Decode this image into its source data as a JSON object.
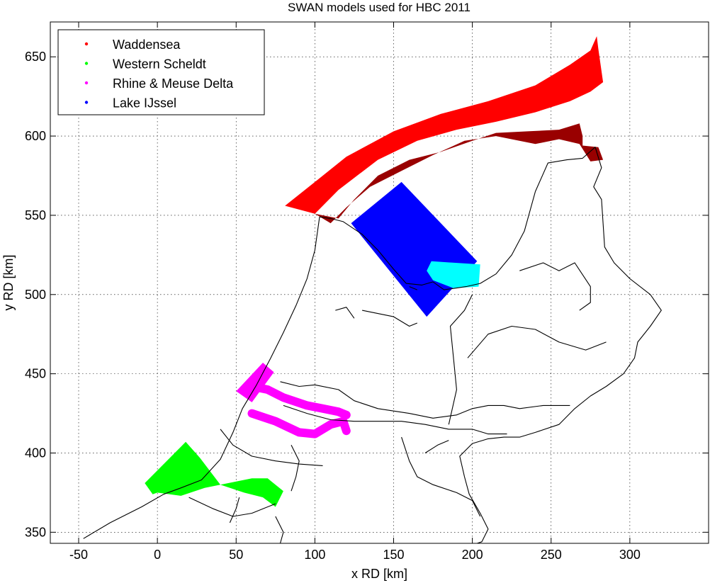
{
  "chart_data": {
    "type": "map",
    "title": "SWAN models used for HBC 2011",
    "xlabel": "x RD [km]",
    "ylabel": "y RD [km]",
    "xlim": [
      -68,
      350
    ],
    "ylim": [
      343,
      672
    ],
    "xticks": [
      -50,
      0,
      50,
      100,
      150,
      200,
      250,
      300
    ],
    "yticks": [
      350,
      400,
      450,
      500,
      550,
      600,
      650
    ],
    "grid": true,
    "legend_position": "top-left",
    "series": [
      {
        "name": "Waddensea",
        "color": "#ff0000",
        "dark_color": "#990000",
        "outer": [
          [
            81,
            556
          ],
          [
            100,
            571
          ],
          [
            120,
            587
          ],
          [
            150,
            603
          ],
          [
            180,
            614
          ],
          [
            210,
            622
          ],
          [
            240,
            632
          ],
          [
            262,
            645
          ],
          [
            275,
            654
          ],
          [
            279,
            663
          ],
          [
            280,
            655
          ],
          [
            283,
            634
          ],
          [
            275,
            628
          ],
          [
            262,
            622
          ],
          [
            240,
            615
          ],
          [
            215,
            609
          ],
          [
            190,
            604
          ],
          [
            165,
            597
          ],
          [
            140,
            585
          ],
          [
            115,
            566
          ],
          [
            100,
            551
          ]
        ],
        "inner": [
          [
            100,
            551
          ],
          [
            115,
            548
          ],
          [
            125,
            560
          ],
          [
            140,
            575
          ],
          [
            160,
            585
          ],
          [
            180,
            590
          ],
          [
            200,
            597
          ],
          [
            215,
            602
          ],
          [
            235,
            603
          ],
          [
            255,
            604
          ],
          [
            268,
            608
          ],
          [
            270,
            600
          ],
          [
            270,
            594
          ],
          [
            280,
            593
          ],
          [
            283,
            585
          ],
          [
            275,
            584
          ],
          [
            268,
            595
          ],
          [
            255,
            598
          ],
          [
            240,
            595
          ],
          [
            215,
            600
          ],
          [
            195,
            597
          ],
          [
            175,
            588
          ],
          [
            155,
            578
          ],
          [
            135,
            568
          ],
          [
            120,
            555
          ],
          [
            110,
            545
          ]
        ]
      },
      {
        "name": "Western Scheldt",
        "color": "#00ff00",
        "polygon": [
          [
            -8,
            381
          ],
          [
            18,
            407
          ],
          [
            27,
            397
          ],
          [
            40,
            380
          ],
          [
            55,
            375
          ],
          [
            67,
            372
          ],
          [
            75,
            366
          ],
          [
            80,
            376
          ],
          [
            70,
            384
          ],
          [
            60,
            384
          ],
          [
            45,
            381
          ],
          [
            30,
            378
          ],
          [
            15,
            373
          ],
          [
            0,
            375
          ],
          [
            -3,
            374
          ]
        ]
      },
      {
        "name": "Rhine & Meuse Delta",
        "color": "#ff00ff",
        "polygon": [
          [
            50,
            439
          ],
          [
            67,
            457
          ],
          [
            74,
            451
          ],
          [
            60,
            432
          ]
        ],
        "channels": [
          [
            [
              60,
              442
            ],
            [
              70,
              440
            ],
            [
              80,
              435
            ],
            [
              95,
              430
            ],
            [
              105,
              428
            ],
            [
              115,
              426
            ],
            [
              120,
              424
            ]
          ],
          [
            [
              60,
              425
            ],
            [
              75,
              420
            ],
            [
              90,
              413
            ],
            [
              100,
              412
            ],
            [
              110,
              418
            ],
            [
              118,
              420
            ],
            [
              120,
              414
            ]
          ]
        ]
      },
      {
        "name": "Lake IJssel",
        "color": "#0000ff",
        "polygon": [
          [
            123,
            545
          ],
          [
            155,
            571
          ],
          [
            203,
            521
          ],
          [
            171,
            486
          ]
        ],
        "cyan_color": "#00ffff",
        "cyan_polygon": [
          [
            171,
            515
          ],
          [
            174,
            521
          ],
          [
            205,
            519
          ],
          [
            204,
            505
          ],
          [
            188,
            504
          ],
          [
            175,
            509
          ]
        ]
      }
    ],
    "coastline": [
      [
        [
          -47,
          346
        ],
        [
          -30,
          356
        ],
        [
          -10,
          366
        ],
        [
          4,
          374
        ],
        [
          15,
          378
        ],
        [
          28,
          383
        ],
        [
          40,
          396
        ],
        [
          48,
          413
        ],
        [
          54,
          428
        ],
        [
          63,
          443
        ],
        [
          72,
          460
        ],
        [
          80,
          476
        ],
        [
          88,
          493
        ],
        [
          95,
          510
        ],
        [
          100,
          528
        ],
        [
          102,
          542
        ],
        [
          103,
          549
        ]
      ],
      [
        [
          103,
          549
        ],
        [
          110,
          548
        ],
        [
          118,
          546
        ],
        [
          130,
          538
        ],
        [
          140,
          528
        ],
        [
          150,
          516
        ],
        [
          158,
          507
        ],
        [
          168,
          506
        ],
        [
          175,
          508
        ],
        [
          182,
          503
        ],
        [
          196,
          505
        ],
        [
          205,
          507
        ],
        [
          215,
          513
        ],
        [
          225,
          525
        ],
        [
          233,
          540
        ],
        [
          240,
          565
        ],
        [
          248,
          583
        ],
        [
          260,
          585
        ],
        [
          270,
          586
        ],
        [
          278,
          593
        ],
        [
          282,
          580
        ],
        [
          277,
          568
        ],
        [
          282,
          560
        ],
        [
          284,
          530
        ],
        [
          290,
          520
        ],
        [
          300,
          510
        ],
        [
          313,
          500
        ],
        [
          320,
          490
        ],
        [
          313,
          480
        ],
        [
          305,
          470
        ],
        [
          303,
          460
        ],
        [
          296,
          450
        ],
        [
          285,
          442
        ],
        [
          275,
          436
        ],
        [
          265,
          428
        ],
        [
          255,
          418
        ],
        [
          240,
          413
        ],
        [
          230,
          410
        ],
        [
          220,
          410
        ],
        [
          210,
          409
        ],
        [
          200,
          406
        ],
        [
          192,
          398
        ],
        [
          195,
          385
        ],
        [
          198,
          374
        ],
        [
          205,
          362
        ],
        [
          210,
          352
        ],
        [
          206,
          344
        ],
        [
          203,
          343
        ]
      ],
      [
        [
          130,
          490
        ],
        [
          140,
          488
        ],
        [
          150,
          486
        ],
        [
          160,
          480
        ],
        [
          165,
          482
        ]
      ],
      [
        [
          113,
          490
        ],
        [
          120,
          492
        ],
        [
          125,
          485
        ]
      ],
      [
        [
          160,
          505
        ],
        [
          165,
          503
        ]
      ]
    ],
    "rivers": [
      [
        [
          78,
          445
        ],
        [
          90,
          442
        ],
        [
          100,
          443
        ],
        [
          115,
          440
        ],
        [
          125,
          433
        ],
        [
          140,
          428
        ],
        [
          160,
          425
        ],
        [
          175,
          422
        ],
        [
          190,
          424
        ],
        [
          200,
          428
        ],
        [
          210,
          430
        ],
        [
          220,
          430
        ],
        [
          230,
          428
        ],
        [
          245,
          430
        ],
        [
          262,
          430
        ]
      ],
      [
        [
          80,
          430
        ],
        [
          95,
          425
        ],
        [
          110,
          421
        ],
        [
          125,
          420
        ],
        [
          140,
          420
        ],
        [
          155,
          420
        ],
        [
          170,
          418
        ],
        [
          185,
          415
        ],
        [
          200,
          415
        ],
        [
          210,
          412
        ],
        [
          222,
          412
        ]
      ],
      [
        [
          185,
          418
        ],
        [
          190,
          440
        ],
        [
          188,
          460
        ],
        [
          186,
          480
        ],
        [
          195,
          490
        ],
        [
          200,
          500
        ]
      ],
      [
        [
          197,
          460
        ],
        [
          210,
          475
        ],
        [
          225,
          480
        ],
        [
          240,
          478
        ],
        [
          255,
          470
        ],
        [
          272,
          465
        ],
        [
          285,
          470
        ]
      ],
      [
        [
          155,
          410
        ],
        [
          160,
          395
        ],
        [
          165,
          385
        ],
        [
          175,
          380
        ],
        [
          190,
          375
        ],
        [
          200,
          370
        ],
        [
          205,
          360
        ]
      ],
      [
        [
          170,
          400
        ],
        [
          178,
          405
        ],
        [
          185,
          408
        ]
      ],
      [
        [
          40,
          415
        ],
        [
          48,
          405
        ],
        [
          60,
          398
        ],
        [
          75,
          395
        ],
        [
          90,
          393
        ],
        [
          105,
          392
        ]
      ],
      [
        [
          85,
          405
        ],
        [
          90,
          395
        ],
        [
          88,
          385
        ],
        [
          85,
          376
        ]
      ],
      [
        [
          20,
          372
        ],
        [
          35,
          365
        ],
        [
          48,
          360
        ],
        [
          60,
          362
        ],
        [
          75,
          368
        ]
      ],
      [
        [
          46,
          356
        ],
        [
          50,
          365
        ],
        [
          52,
          372
        ]
      ],
      [
        [
          75,
          360
        ],
        [
          80,
          350
        ],
        [
          78,
          343
        ]
      ],
      [
        [
          230,
          515
        ],
        [
          245,
          520
        ],
        [
          255,
          515
        ],
        [
          265,
          520
        ],
        [
          275,
          505
        ],
        [
          275,
          495
        ],
        [
          268,
          490
        ]
      ]
    ]
  }
}
